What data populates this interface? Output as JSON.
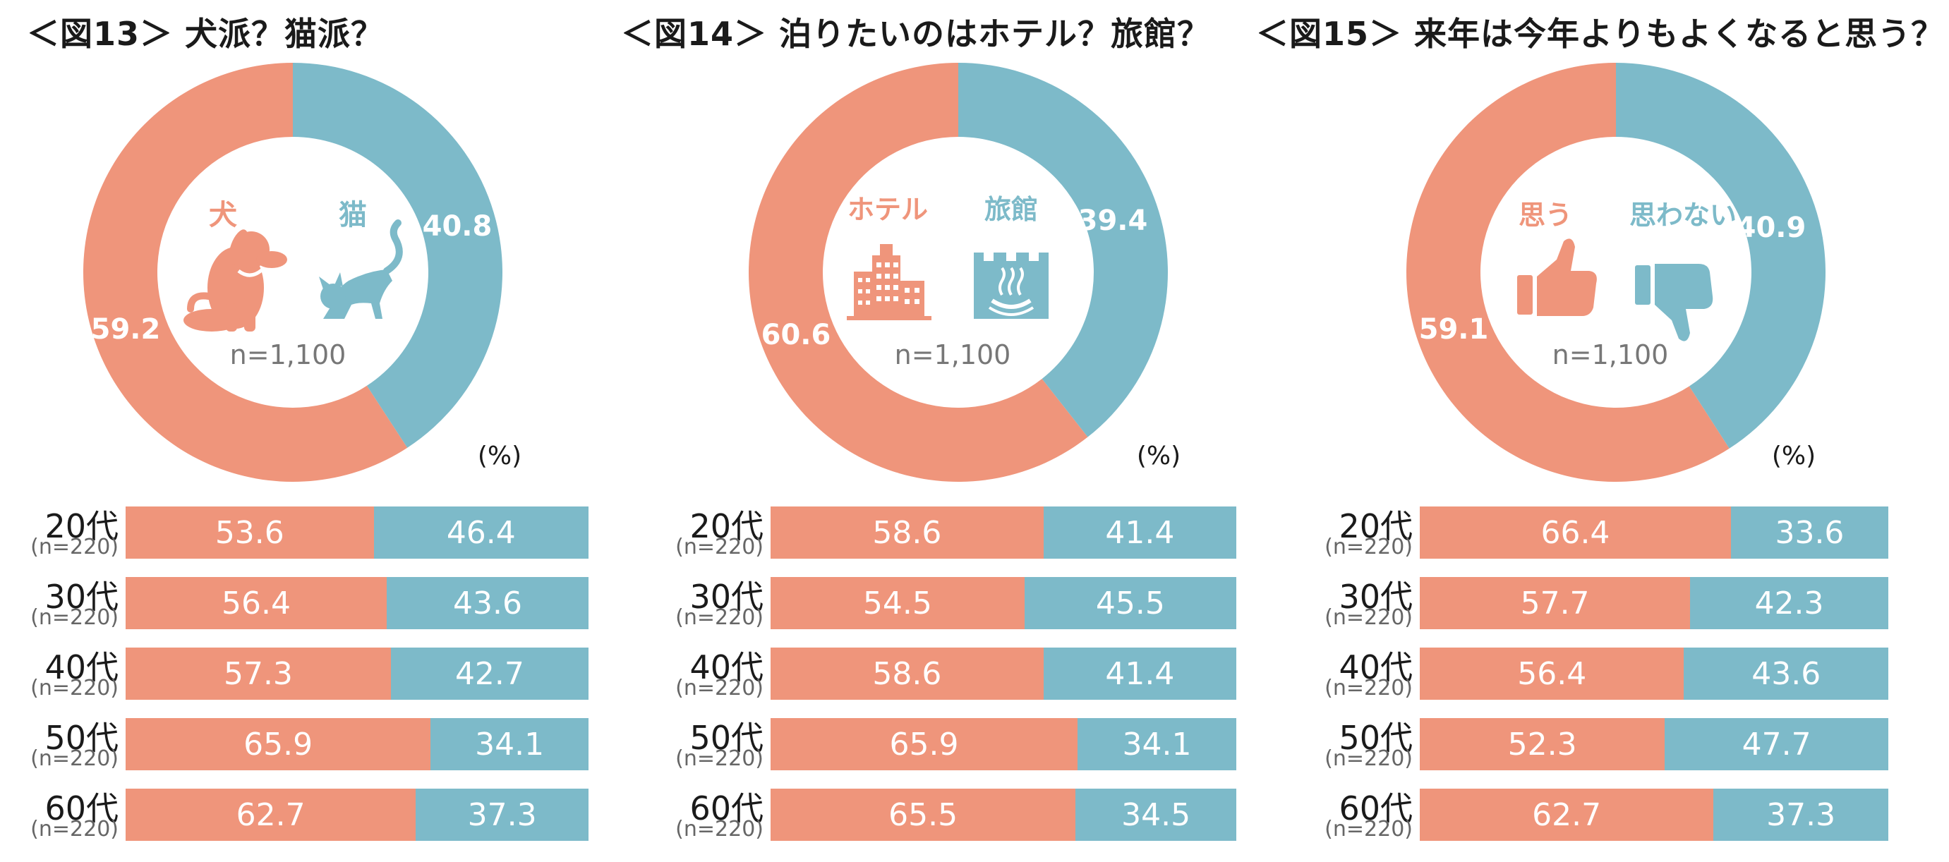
{
  "colors": {
    "primary": "#ef957b",
    "secondary": "#7dbac9",
    "center_text": "#777777",
    "title": "#1a1a1a"
  },
  "chart_data": [
    {
      "type": "pie",
      "title": "＜図13＞ 犬派？猫派？",
      "sample": "n=1,100",
      "unit": "(%)",
      "categories": [
        "犬",
        "猫"
      ],
      "icons": [
        "dog-icon",
        "cat-icon"
      ],
      "values": [
        59.2,
        40.8
      ],
      "value_labels": [
        "59.2",
        "40.8"
      ],
      "breakdown": {
        "type": "bar",
        "stacked": true,
        "rows": [
          {
            "label": "20代",
            "n": "(n=220)",
            "a": "53.6",
            "b": "46.4"
          },
          {
            "label": "30代",
            "n": "(n=220)",
            "a": "56.4",
            "b": "43.6"
          },
          {
            "label": "40代",
            "n": "(n=220)",
            "a": "57.3",
            "b": "42.7"
          },
          {
            "label": "50代",
            "n": "(n=220)",
            "a": "65.9",
            "b": "34.1"
          },
          {
            "label": "60代",
            "n": "(n=220)",
            "a": "62.7",
            "b": "37.3"
          }
        ]
      }
    },
    {
      "type": "pie",
      "title": "＜図14＞ 泊りたいのはホテル？旅館？",
      "sample": "n=1,100",
      "unit": "(%)",
      "categories": [
        "ホテル",
        "旅館"
      ],
      "icons": [
        "hotel-building-icon",
        "ryokan-hot-spring-icon"
      ],
      "values": [
        60.6,
        39.4
      ],
      "value_labels": [
        "60.6",
        "39.4"
      ],
      "breakdown": {
        "type": "bar",
        "stacked": true,
        "rows": [
          {
            "label": "20代",
            "n": "(n=220)",
            "a": "58.6",
            "b": "41.4"
          },
          {
            "label": "30代",
            "n": "(n=220)",
            "a": "54.5",
            "b": "45.5"
          },
          {
            "label": "40代",
            "n": "(n=220)",
            "a": "58.6",
            "b": "41.4"
          },
          {
            "label": "50代",
            "n": "(n=220)",
            "a": "65.9",
            "b": "34.1"
          },
          {
            "label": "60代",
            "n": "(n=220)",
            "a": "65.5",
            "b": "34.5"
          }
        ]
      }
    },
    {
      "type": "pie",
      "title": "＜図15＞ 来年は今年よりもよくなると思う？",
      "sample": "n=1,100",
      "unit": "(%)",
      "categories": [
        "思う",
        "思わない"
      ],
      "icons": [
        "thumbs-up-icon",
        "thumbs-down-icon"
      ],
      "values": [
        59.1,
        40.9
      ],
      "value_labels": [
        "59.1",
        "40.9"
      ],
      "breakdown": {
        "type": "bar",
        "stacked": true,
        "rows": [
          {
            "label": "20代",
            "n": "(n=220)",
            "a": "66.4",
            "b": "33.6"
          },
          {
            "label": "30代",
            "n": "(n=220)",
            "a": "57.7",
            "b": "42.3"
          },
          {
            "label": "40代",
            "n": "(n=220)",
            "a": "56.4",
            "b": "43.6"
          },
          {
            "label": "50代",
            "n": "(n=220)",
            "a": "52.3",
            "b": "47.7"
          },
          {
            "label": "60代",
            "n": "(n=220)",
            "a": "62.7",
            "b": "37.3"
          }
        ]
      }
    }
  ]
}
